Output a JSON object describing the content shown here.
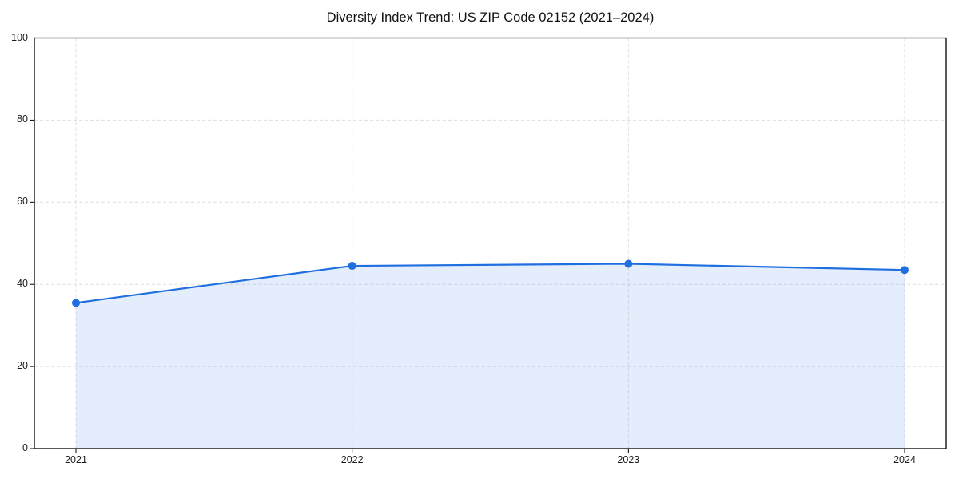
{
  "figure": {
    "background": "#ffffff"
  },
  "chart_data": {
    "type": "line",
    "title": "Diversity Index Trend: US ZIP Code 02152 (2021–2024)",
    "x": [
      2021,
      2022,
      2023,
      2024
    ],
    "x_tick_labels": [
      "2021",
      "2022",
      "2023",
      "2024"
    ],
    "y_ticks": [
      0,
      20,
      40,
      60,
      80,
      100
    ],
    "ylim": [
      0,
      100
    ],
    "series": [
      {
        "values": [
          35.5,
          44.5,
          45,
          43.5
        ]
      }
    ],
    "grid": "dashed",
    "legend": "none",
    "colors": {
      "line": "#1f6fe0",
      "marker": "#1f6fe0",
      "area_fill": "rgba(31,111,224,0.12)",
      "grid": "#dedede",
      "spine": "#000000",
      "tick_label": "#1a1a1a",
      "title": "#111111"
    }
  }
}
